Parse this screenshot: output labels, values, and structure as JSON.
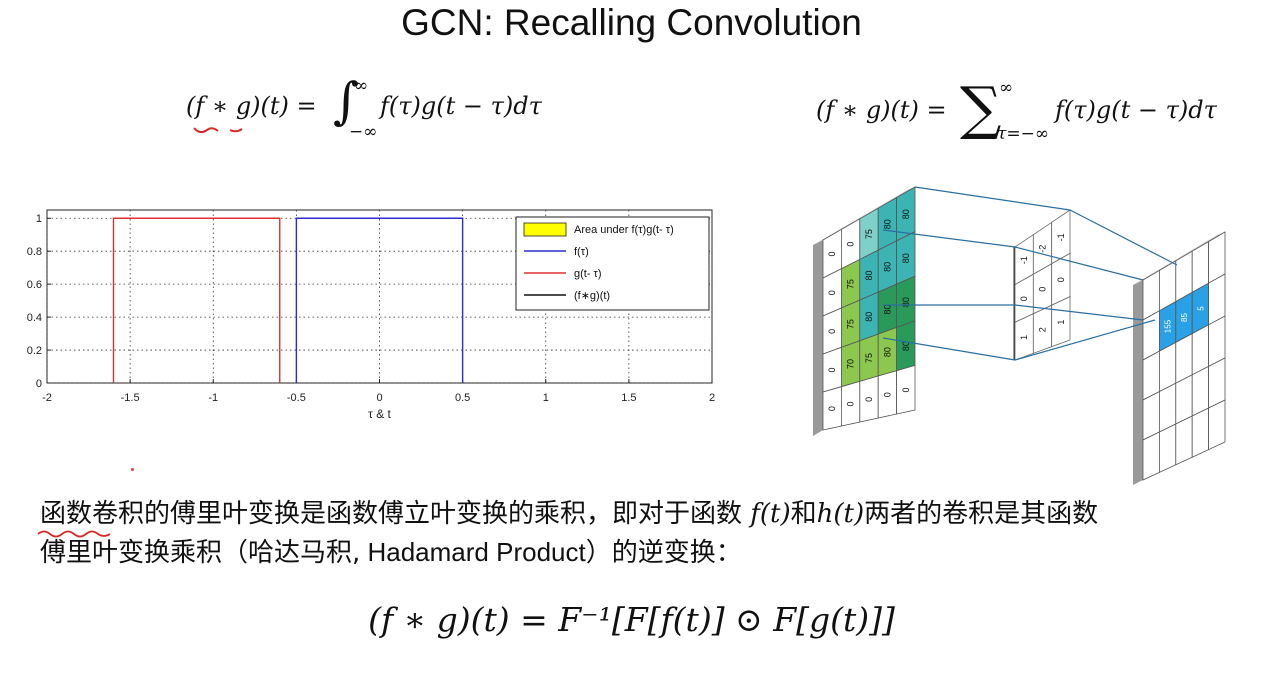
{
  "title": "GCN: Recalling Convolution",
  "formula_continuous": {
    "lhs": "(f ∗ g)(t) =",
    "integral_sign": "∫",
    "upper": "∞",
    "lower": "−∞",
    "rhs": "f(τ)g(t − τ)dτ"
  },
  "formula_discrete": {
    "lhs": "(f ∗ g)(t) =",
    "sum_sign": "∑",
    "upper": "∞",
    "lower": "τ=−∞",
    "rhs": "f(τ)g(t − τ)dτ"
  },
  "chart_data": {
    "type": "line",
    "xlabel": "τ & t",
    "ylabel": "",
    "xlim": [
      -2,
      2
    ],
    "ylim": [
      0,
      1.05
    ],
    "xticks": [
      "-2",
      "-1.5",
      "-1",
      "-0.5",
      "0",
      "0.5",
      "1",
      "1.5",
      "2"
    ],
    "yticks": [
      "0",
      "0.2",
      "0.4",
      "0.6",
      "0.8",
      "1"
    ],
    "grid": true,
    "legend_position": "top-right",
    "legend": [
      {
        "label": "Area under f(τ)g(t- τ)",
        "color": "#ffff00",
        "kind": "area"
      },
      {
        "label": "f(τ)",
        "color": "#2b2bd0",
        "kind": "line"
      },
      {
        "label": "g(t- τ)",
        "color": "#e03030",
        "kind": "line"
      },
      {
        "label": "(f∗g)(t)",
        "color": "#111111",
        "kind": "line"
      }
    ],
    "series": [
      {
        "name": "f(τ)",
        "color": "#2b2bd0",
        "x": [
          -0.5,
          -0.5,
          0.5,
          0.5
        ],
        "y": [
          0,
          1,
          1,
          0
        ]
      },
      {
        "name": "g(t- τ)",
        "color": "#e03030",
        "x": [
          -1.6,
          -1.6,
          -0.6,
          -0.6
        ],
        "y": [
          0,
          1,
          1,
          0
        ]
      }
    ]
  },
  "conv_figure": {
    "input_grid": [
      [
        "0",
        "0",
        "75",
        "80",
        "80"
      ],
      [
        "0",
        "75",
        "80",
        "80",
        "80"
      ],
      [
        "0",
        "75",
        "80",
        "80",
        "80"
      ],
      [
        "0",
        "70",
        "75",
        "80",
        "80"
      ],
      [
        "0",
        "0",
        "0",
        "0",
        "0"
      ]
    ],
    "kernel": [
      [
        "-1",
        "-2",
        "-1"
      ],
      [
        "0",
        "0",
        "0"
      ],
      [
        "1",
        "2",
        "1"
      ]
    ],
    "output_values": [
      "155",
      "85",
      "5"
    ],
    "colors": {
      "input_teal": "#3cb4b4",
      "input_green": "#8cc850",
      "input_darkgreen": "#2a9a5a",
      "output_blue": "#2aa0e6",
      "frame_gray": "#9a9a9a",
      "link_line": "#2a6fa0"
    }
  },
  "paragraph": {
    "l1_a": "函数卷积的傅里叶变换是函数傅立叶变换的乘积，即对于函数",
    "l1_f": "f(t)",
    "l1_b": "和",
    "l1_h": "h(t)",
    "l1_c": "两者的卷积是其函数",
    "l2_a": "傅里叶变换乘积（哈达马积,",
    "l2_en": " Hadamard Product",
    "l2_b": "）的逆变换："
  },
  "formula_conv_theorem": "(f ∗ g)(t) = F⁻¹[F[f(t)] ⊙ F[g(t)]]",
  "annotation_colors": {
    "red_ink": "#d42a2a"
  }
}
